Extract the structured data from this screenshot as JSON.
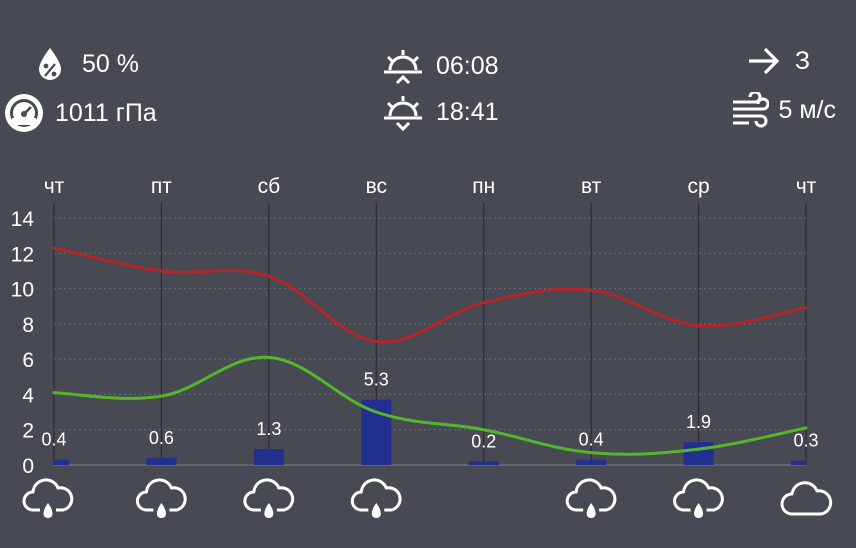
{
  "header": {
    "humidity": "50 %",
    "pressure": "1011 гПа",
    "sunrise": "06:08",
    "sunset": "18:41",
    "wind_direction": "З",
    "wind_speed": "5 м/с"
  },
  "chart_data": {
    "type": "line",
    "categories": [
      "чт",
      "пт",
      "сб",
      "вс",
      "пн",
      "вт",
      "ср",
      "чт"
    ],
    "yticks": [
      "0",
      "2",
      "4",
      "6",
      "8",
      "10",
      "12",
      "14"
    ],
    "ylim": [
      0,
      14
    ],
    "grid": true,
    "series": [
      {
        "values": [
          12.3,
          11.0,
          10.7,
          7.0,
          9.2,
          9.9,
          7.9,
          8.9
        ],
        "color": "#b5262b"
      },
      {
        "values": [
          4.1,
          3.9,
          6.1,
          3.0,
          2.0,
          0.7,
          0.9,
          2.1
        ],
        "color": "#55b52a"
      }
    ],
    "bars": {
      "values": [
        0.3,
        0.4,
        0.9,
        3.7,
        0.2,
        0.3,
        1.3,
        0.25
      ],
      "labels": [
        "0.4",
        "0.6",
        "1.3",
        "5.3",
        "0.2",
        "0.4",
        "1.9",
        "0.3"
      ],
      "color": "#232f8f"
    },
    "icons": [
      "rain-cloud-icon",
      "rain-cloud-icon",
      "rain-cloud-icon",
      "rain-cloud-icon",
      "",
      "rain-cloud-icon",
      "rain-cloud-icon",
      "cloud-icon"
    ]
  }
}
